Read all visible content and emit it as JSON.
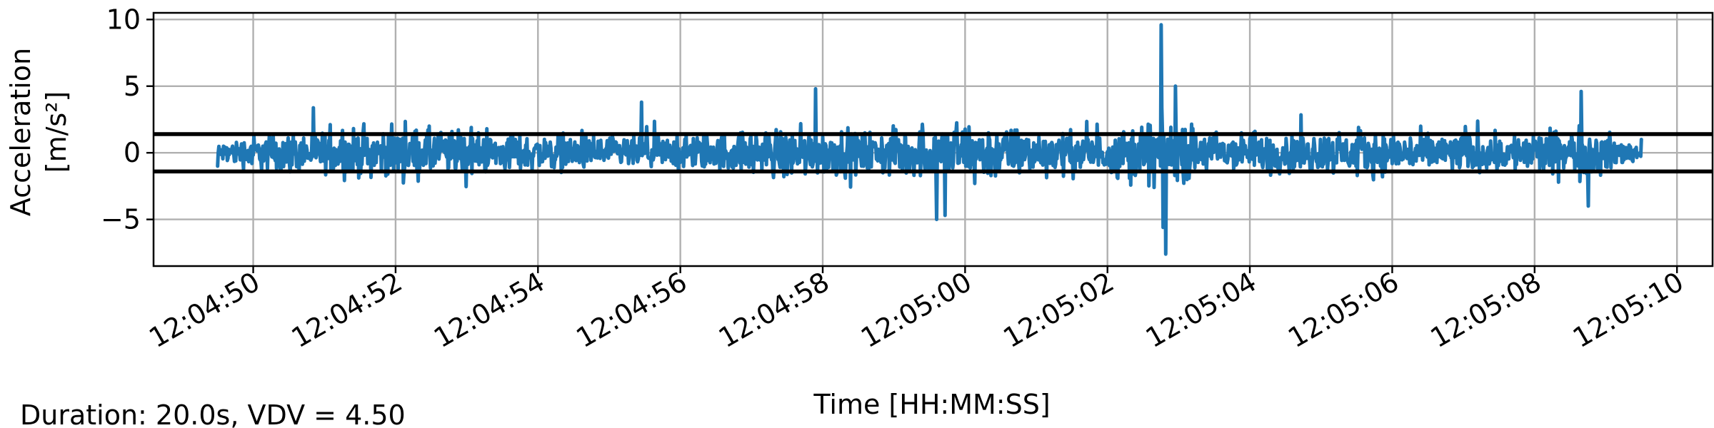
{
  "chart_data": {
    "type": "line",
    "xlabel": "Time [HH:MM:SS]",
    "ylabel_line1": "Acceleration",
    "ylabel_line2": "[m/s²]",
    "footer": "Duration: 20.0s, VDV = 4.50",
    "x_start": "12:04:49.5",
    "x_end": "12:05:09.5",
    "xlim": [
      "12:04:48.6",
      "12:05:10.5"
    ],
    "ylim": [
      -8.5,
      10.5
    ],
    "x_ticks": [
      "12:04:50",
      "12:04:52",
      "12:04:54",
      "12:04:56",
      "12:04:58",
      "12:05:00",
      "12:05:02",
      "12:05:04",
      "12:05:06",
      "12:05:08",
      "12:05:10"
    ],
    "y_ticks": [
      10,
      5,
      0,
      -5
    ],
    "y_tick_labels": [
      "10",
      "5",
      "0",
      "−5"
    ],
    "threshold_lines": [
      1.4,
      -1.4
    ],
    "grid": true,
    "series": [
      {
        "color": "#1f77b4",
        "envelope": [
          {
            "t": 0.0,
            "amp": 1.2
          },
          {
            "t": 0.5,
            "amp": 2.5
          },
          {
            "t": 1.0,
            "amp": 2.8
          },
          {
            "t": 2.0,
            "amp": 3.2
          },
          {
            "t": 3.0,
            "amp": 3.4
          },
          {
            "t": 4.0,
            "amp": 2.6
          },
          {
            "t": 5.0,
            "amp": 2.4
          },
          {
            "t": 6.0,
            "amp": 2.2
          },
          {
            "t": 7.0,
            "amp": 2.6
          },
          {
            "t": 8.0,
            "amp": 3.6
          },
          {
            "t": 9.0,
            "amp": 3.0
          },
          {
            "t": 10.0,
            "amp": 3.5
          },
          {
            "t": 10.6,
            "amp": 4.4
          },
          {
            "t": 11.5,
            "amp": 3.0
          },
          {
            "t": 12.5,
            "amp": 2.8
          },
          {
            "t": 13.3,
            "amp": 5.0
          },
          {
            "t": 14.0,
            "amp": 2.8
          },
          {
            "t": 15.0,
            "amp": 2.6
          },
          {
            "t": 16.0,
            "amp": 3.0
          },
          {
            "t": 17.0,
            "amp": 2.8
          },
          {
            "t": 18.0,
            "amp": 2.7
          },
          {
            "t": 19.2,
            "amp": 3.5
          },
          {
            "t": 20.0,
            "amp": 1.2
          }
        ],
        "spikes": [
          {
            "t": 13.25,
            "v": 9.6
          },
          {
            "t": 13.28,
            "v": -5.6
          },
          {
            "t": 13.32,
            "v": -7.6
          },
          {
            "t": 13.45,
            "v": 5.0
          },
          {
            "t": 10.1,
            "v": -5.0
          },
          {
            "t": 10.22,
            "v": -4.7
          },
          {
            "t": 8.4,
            "v": 4.8
          },
          {
            "t": 19.15,
            "v": 4.6
          },
          {
            "t": 19.25,
            "v": -4.0
          },
          {
            "t": 5.95,
            "v": 3.8
          }
        ]
      }
    ]
  }
}
